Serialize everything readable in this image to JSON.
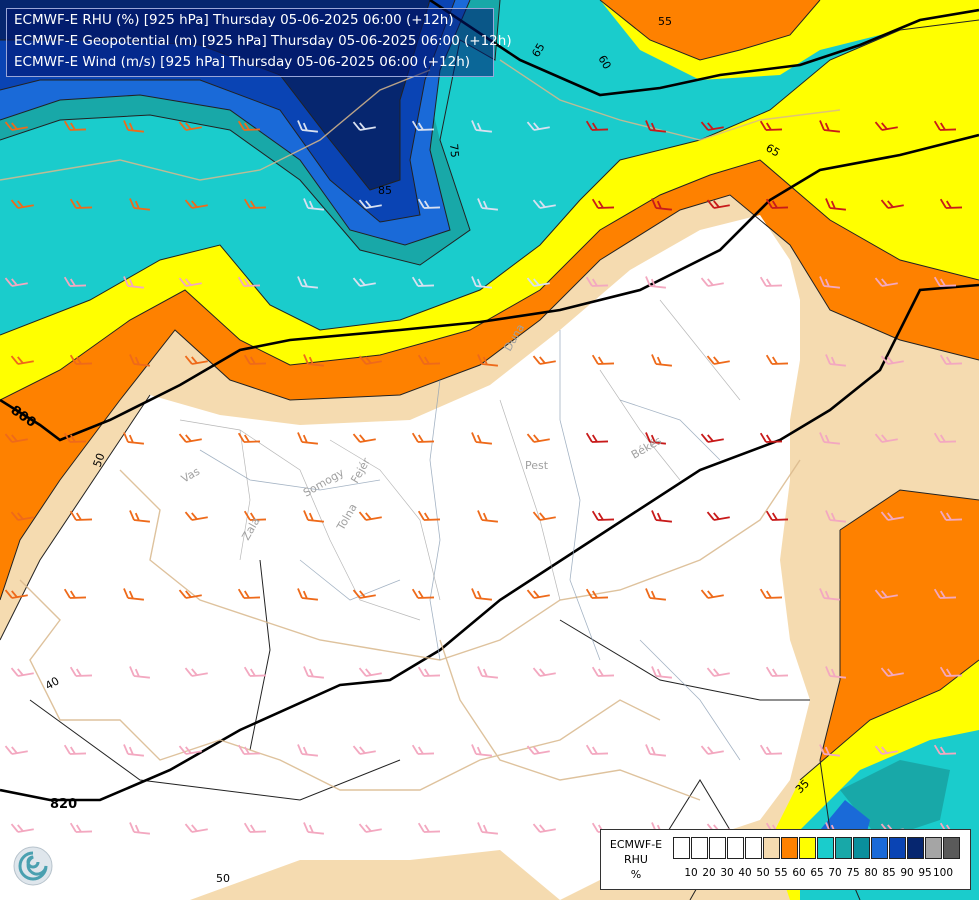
{
  "title_lines": [
    "ECMWF-E RHU (%) [925 hPa] Thursday 05-06-2025 06:00 (+12h)",
    "ECMWF-E Geopotential (m) [925 hPa] Thursday 05-06-2025 06:00 (+12h)",
    "ECMWF-E Wind (m/s) [925 hPa] Thursday 05-06-2025 06:00 (+12h)"
  ],
  "legend": {
    "title": [
      "ECMWF-E",
      "RHU",
      "%"
    ],
    "colors": [
      "#ffffff",
      "#ffffff",
      "#ffffff",
      "#ffffff",
      "#ffffff",
      "#f5dbb0",
      "#fe8100",
      "#ffff00",
      "#1acccc",
      "#18a8a8",
      "#0a8f9c",
      "#1a6ad8",
      "#0a44b4",
      "#06266f",
      "#a5a5a5",
      "#5a5a5a"
    ],
    "ticks": [
      "10",
      "20",
      "30",
      "40",
      "50",
      "55",
      "60",
      "65",
      "70",
      "75",
      "80",
      "85",
      "90",
      "95",
      "100"
    ]
  },
  "geopotential_labels": [
    "800",
    "820"
  ],
  "rhu_labels": [
    "55",
    "60",
    "65",
    "65",
    "75",
    "85",
    "50",
    "40",
    "35",
    "50"
  ],
  "region_labels": [
    "Vas",
    "Somogy",
    "Zala",
    "Tolna",
    "Fejér",
    "Pest",
    "Békés",
    "Duna"
  ],
  "logo": "ecmwf-logo-icon"
}
